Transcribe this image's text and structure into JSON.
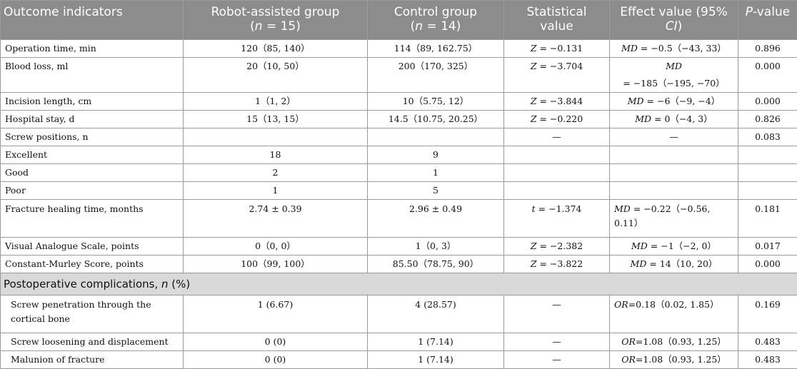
{
  "headers": {
    "col1": "Outcome indicators",
    "col2_line1": "Robot-assisted group",
    "col2_n": "n",
    "col2_val": " = 15)",
    "col3_line1": "Control group",
    "col3_n": "n",
    "col3_val": " = 14)",
    "col4": "Statistical value",
    "col5_pre": "Effect value (95% ",
    "col5_ci": "CI",
    "col5_post": ")",
    "col6_p": "P",
    "col6_rest": "-value"
  },
  "rows": [
    {
      "label": "Operation time, min",
      "robot": "120（85, 140）",
      "control": "114（89, 162.75）",
      "stat_sym": "Z",
      "stat_val": " = −0.131",
      "eff_sym": "MD",
      "eff_val": " = −0.5（−43, 33）",
      "p": "0.896"
    },
    {
      "label": "Blood loss, ml",
      "robot": "20（10, 50）",
      "control": "200（170, 325）",
      "stat_sym": "Z",
      "stat_val": " = −3.704",
      "eff_sym": "MD",
      "eff_val": " = −185（−195, −70）",
      "p": "0.000"
    },
    {
      "label": "Incision length, cm",
      "robot": "1（1, 2）",
      "control": "10（5.75, 12）",
      "stat_sym": "Z",
      "stat_val": " = −3.844",
      "eff_sym": "MD",
      "eff_val": " = −6（−9, −4）",
      "p": "0.000"
    },
    {
      "label": "Hospital stay, d",
      "robot": "15（13, 15）",
      "control": "14.5（10.75, 20.25）",
      "stat_sym": "Z",
      "stat_val": " = −0.220",
      "eff_sym": "MD",
      "eff_val": " = 0（−4, 3）",
      "p": "0.826"
    },
    {
      "label": "Screw positions, n",
      "robot": "",
      "control": "",
      "stat_sym": "",
      "stat_val": "—",
      "eff_sym": "",
      "eff_val": "—",
      "p": "0.083"
    },
    {
      "label": "Excellent",
      "robot": "18",
      "control": "9",
      "stat_sym": "",
      "stat_val": "",
      "eff_sym": "",
      "eff_val": "",
      "p": ""
    },
    {
      "label": "Good",
      "robot": "2",
      "control": "1",
      "stat_sym": "",
      "stat_val": "",
      "eff_sym": "",
      "eff_val": "",
      "p": ""
    },
    {
      "label": "Poor",
      "robot": "1",
      "control": "5",
      "stat_sym": "",
      "stat_val": "",
      "eff_sym": "",
      "eff_val": "",
      "p": ""
    }
  ],
  "healing": {
    "label": "Fracture healing time, months",
    "robot": "2.74 ± 0.39",
    "control": "2.96 ± 0.49",
    "stat_sym": "t",
    "stat_val": " = −1.374",
    "eff_sym": "MD",
    "eff_val": " = −0.22（−0.56, 0.11）",
    "p": "0.181"
  },
  "rows2": [
    {
      "label": "Visual Analogue Scale, points",
      "robot": "0（0, 0）",
      "control": "1（0, 3）",
      "stat_sym": "Z",
      "stat_val": " = −2.382",
      "eff_sym": "MD",
      "eff_val": " = −1（−2, 0）",
      "p": "0.017"
    },
    {
      "label": "Constant-Murley Score, points",
      "robot": "100（99, 100）",
      "control": "85.50（78.75, 90）",
      "stat_sym": "Z",
      "stat_val": " = −3.822",
      "eff_sym": "MD",
      "eff_val": " = 14（10, 20）",
      "p": "0.000"
    }
  ],
  "section": {
    "pre": "Postoperative complications, ",
    "n": "n",
    "post": " (%)"
  },
  "complications": [
    {
      "label": "Screw penetration through the cortical bone",
      "robot": "1 (6.67)",
      "control": "4 (28.57)",
      "stat": "—",
      "eff_sym": "OR",
      "eff_val": "=0.18（0.02, 1.85）",
      "p": "0.169"
    },
    {
      "label": "Screw loosening and displacement",
      "robot": "0 (0)",
      "control": "1 (7.14)",
      "stat": "—",
      "eff_sym": "OR",
      "eff_val": "=1.08（0.93, 1.25）",
      "p": "0.483"
    },
    {
      "label": "Malunion of fracture",
      "robot": "0 (0)",
      "control": "1 (7.14)",
      "stat": "—",
      "eff_sym": "OR",
      "eff_val": "=1.08（0.93, 1.25）",
      "p": "0.483"
    }
  ]
}
